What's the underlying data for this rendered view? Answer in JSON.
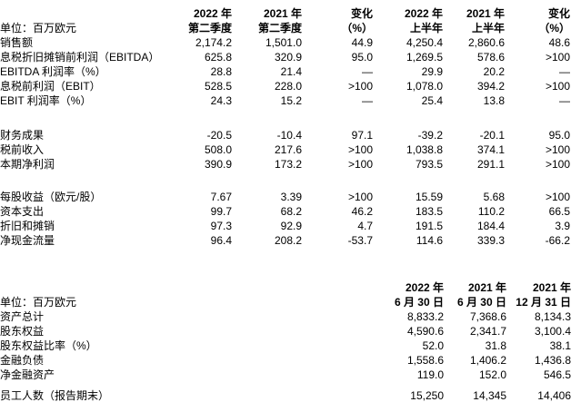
{
  "page": {
    "background_color": "#ffffff",
    "text_color": "#000000"
  },
  "income_table": {
    "unit_label": "单位：百万欧元",
    "headers": [
      {
        "line1": "2022 年",
        "line2": "第二季度"
      },
      {
        "line1": "2021 年",
        "line2": "第二季度"
      },
      {
        "line1": "变化",
        "line2": "（%）"
      },
      {
        "line1": "2022 年",
        "line2": "上半年"
      },
      {
        "line1": "2021 年",
        "line2": "上半年"
      },
      {
        "line1": "变化",
        "line2": "（%）"
      }
    ],
    "groups": [
      {
        "rows": [
          {
            "label": "销售额",
            "values": [
              "2,174.2",
              "1,501.0",
              "44.9",
              "4,250.4",
              "2,860.6",
              "48.6"
            ]
          },
          {
            "label": "息税折旧摊销前利润（EBITDA）",
            "values": [
              "625.8",
              "320.9",
              "95.0",
              "1,269.5",
              "578.6",
              ">100"
            ]
          },
          {
            "label": "EBITDA 利润率（%）",
            "values": [
              "28.8",
              "21.4",
              "—",
              "29.9",
              "20.2",
              "—"
            ]
          },
          {
            "label": "息税前利润（EBIT）",
            "values": [
              "528.5",
              "228.0",
              ">100",
              "1,078.0",
              "394.2",
              ">100"
            ]
          },
          {
            "label": "EBIT 利润率（%）",
            "values": [
              "24.3",
              "15.2",
              "—",
              "25.4",
              "13.8",
              "—"
            ]
          }
        ]
      },
      {
        "rows": [
          {
            "label": "财务成果",
            "values": [
              "-20.5",
              "-10.4",
              "97.1",
              "-39.2",
              "-20.1",
              "95.0"
            ]
          },
          {
            "label": "税前收入",
            "values": [
              "508.0",
              "217.6",
              ">100",
              "1,038.8",
              "374.1",
              ">100"
            ]
          },
          {
            "label": "本期净利润",
            "values": [
              "390.9",
              "173.2",
              ">100",
              "793.5",
              "291.1",
              ">100"
            ]
          }
        ]
      },
      {
        "rows": [
          {
            "label": "每股收益（欧元/股）",
            "values": [
              "7.67",
              "3.39",
              ">100",
              "15.59",
              "5.68",
              ">100"
            ]
          },
          {
            "label": "资本支出",
            "values": [
              "99.7",
              "68.2",
              "46.2",
              "183.5",
              "110.2",
              "66.5"
            ]
          },
          {
            "label": "折旧和摊销",
            "values": [
              "97.3",
              "92.9",
              "4.7",
              "191.5",
              "184.4",
              "3.9"
            ]
          },
          {
            "label": "净现金流量",
            "values": [
              "96.4",
              "208.2",
              "-53.7",
              "114.6",
              "339.3",
              "-66.2"
            ]
          }
        ]
      }
    ]
  },
  "balance_table": {
    "unit_label": "单位：百万欧元",
    "headers": [
      {
        "line1": "2022 年",
        "line2": "6 月 30 日"
      },
      {
        "line1": "2021 年",
        "line2": "6 月 30 日"
      },
      {
        "line1": "2021 年",
        "line2": "12 月 31 日"
      }
    ],
    "groups": [
      {
        "rows": [
          {
            "label": "资产总计",
            "values": [
              "8,833.2",
              "7,368.6",
              "8,134.3"
            ]
          },
          {
            "label": "股东权益",
            "values": [
              "4,590.6",
              "2,341.7",
              "3,100.4"
            ]
          },
          {
            "label": "股东权益比率（%）",
            "values": [
              "52.0",
              "31.8",
              "38.1"
            ]
          },
          {
            "label": "金融负债",
            "values": [
              "1,558.6",
              "1,406.2",
              "1,436.8"
            ]
          },
          {
            "label": "净金融资产",
            "values": [
              "119.0",
              "152.0",
              "546.5"
            ]
          }
        ]
      },
      {
        "rows": [
          {
            "label": "员工人数（报告期末）",
            "values": [
              "15,250",
              "14,345",
              "14,406"
            ]
          }
        ]
      }
    ]
  }
}
